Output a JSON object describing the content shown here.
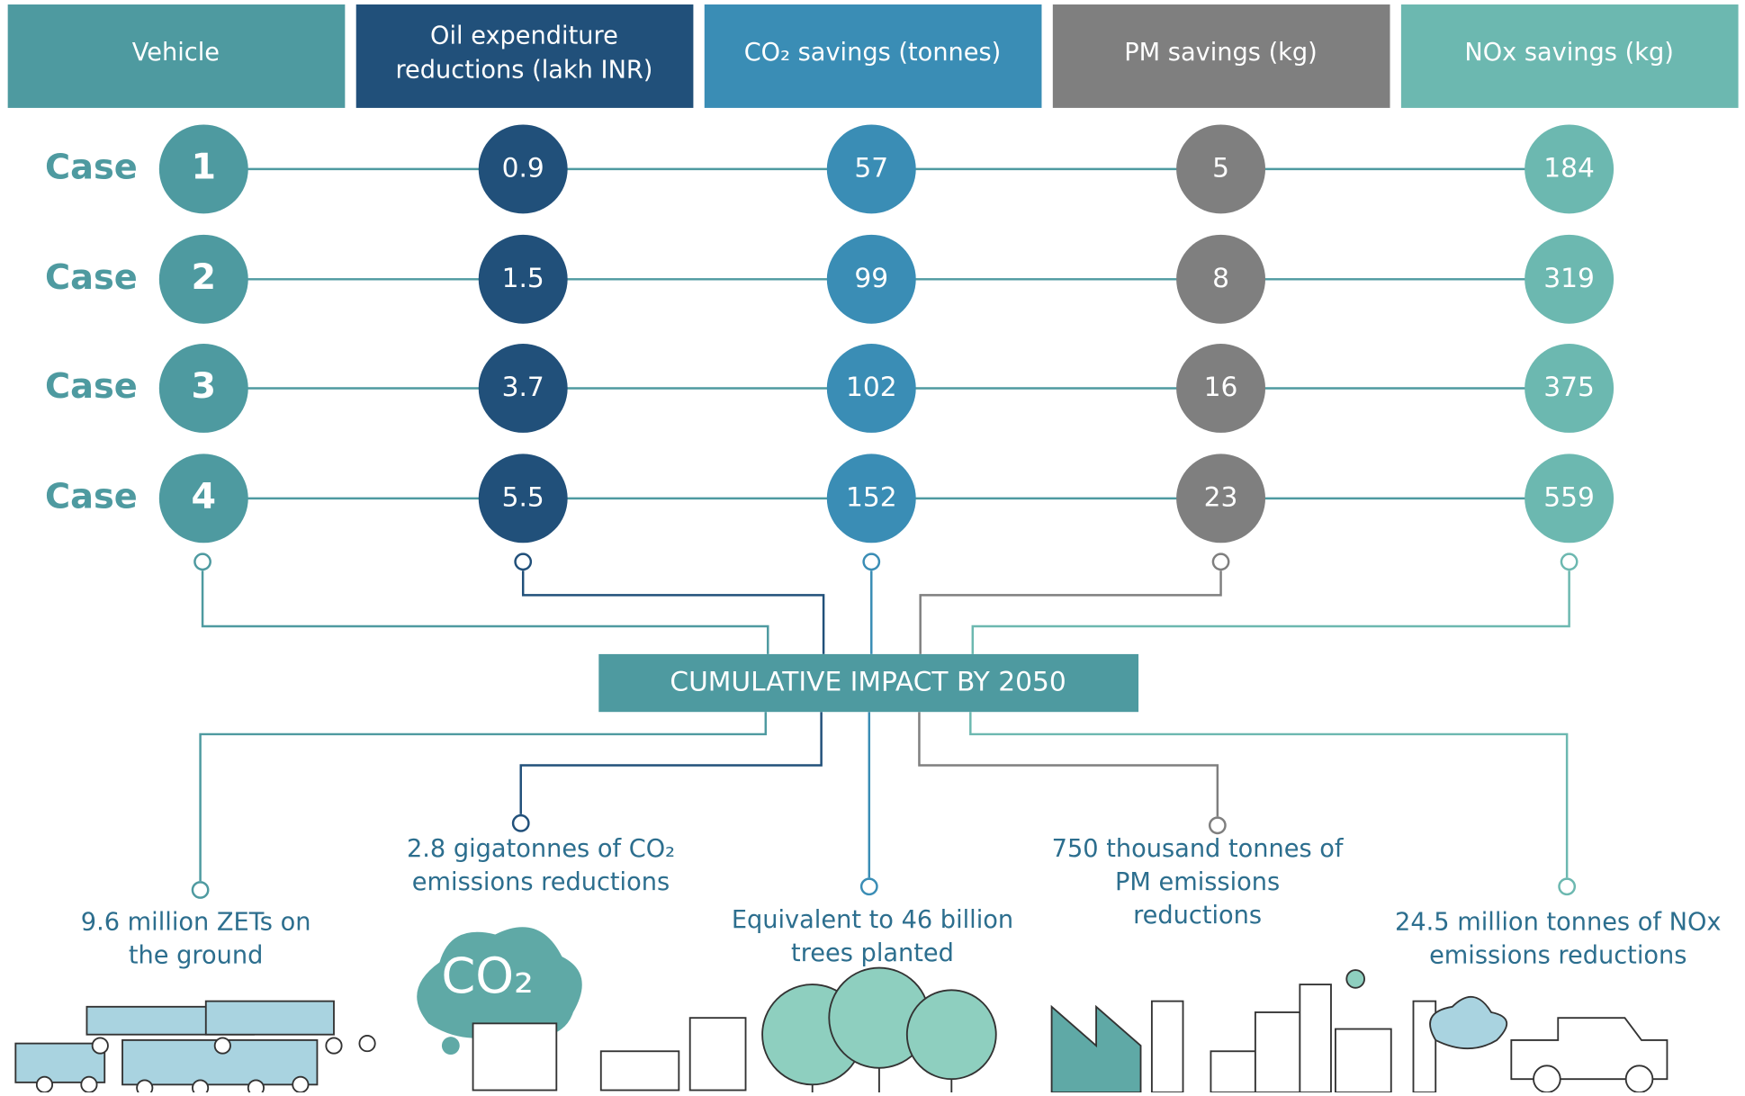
{
  "header": [
    "Vehicle",
    [
      "Oil expenditure",
      "reductions (lakh INR)"
    ],
    "CO₂ savings (tonnes)",
    "PM savings (kg)",
    "NOx savings (kg)"
  ],
  "row_label": "Case",
  "rows": [
    {
      "case": "1",
      "values": [
        0.9,
        57,
        5,
        184
      ]
    },
    {
      "case": "2",
      "values": [
        1.5,
        99,
        8,
        319
      ]
    },
    {
      "case": "3",
      "values": [
        3.7,
        102,
        16,
        375
      ]
    },
    {
      "case": "4",
      "values": [
        5.5,
        152,
        23,
        559
      ]
    }
  ],
  "center_label": "CUMULATIVE IMPACT BY 2050",
  "outcomes": [
    [
      "9.6 million ZETs on",
      "the ground"
    ],
    [
      "2.8 gigatonnes of CO₂",
      "emissions  reductions"
    ],
    [
      "Equivalent to 46 billion",
      "trees planted"
    ],
    [
      "750 thousand tonnes of",
      "PM  emissions",
      "reductions"
    ],
    [
      "24.5 million tonnes of NOx",
      "emissions reductions"
    ]
  ],
  "icon_text": "CO₂"
}
